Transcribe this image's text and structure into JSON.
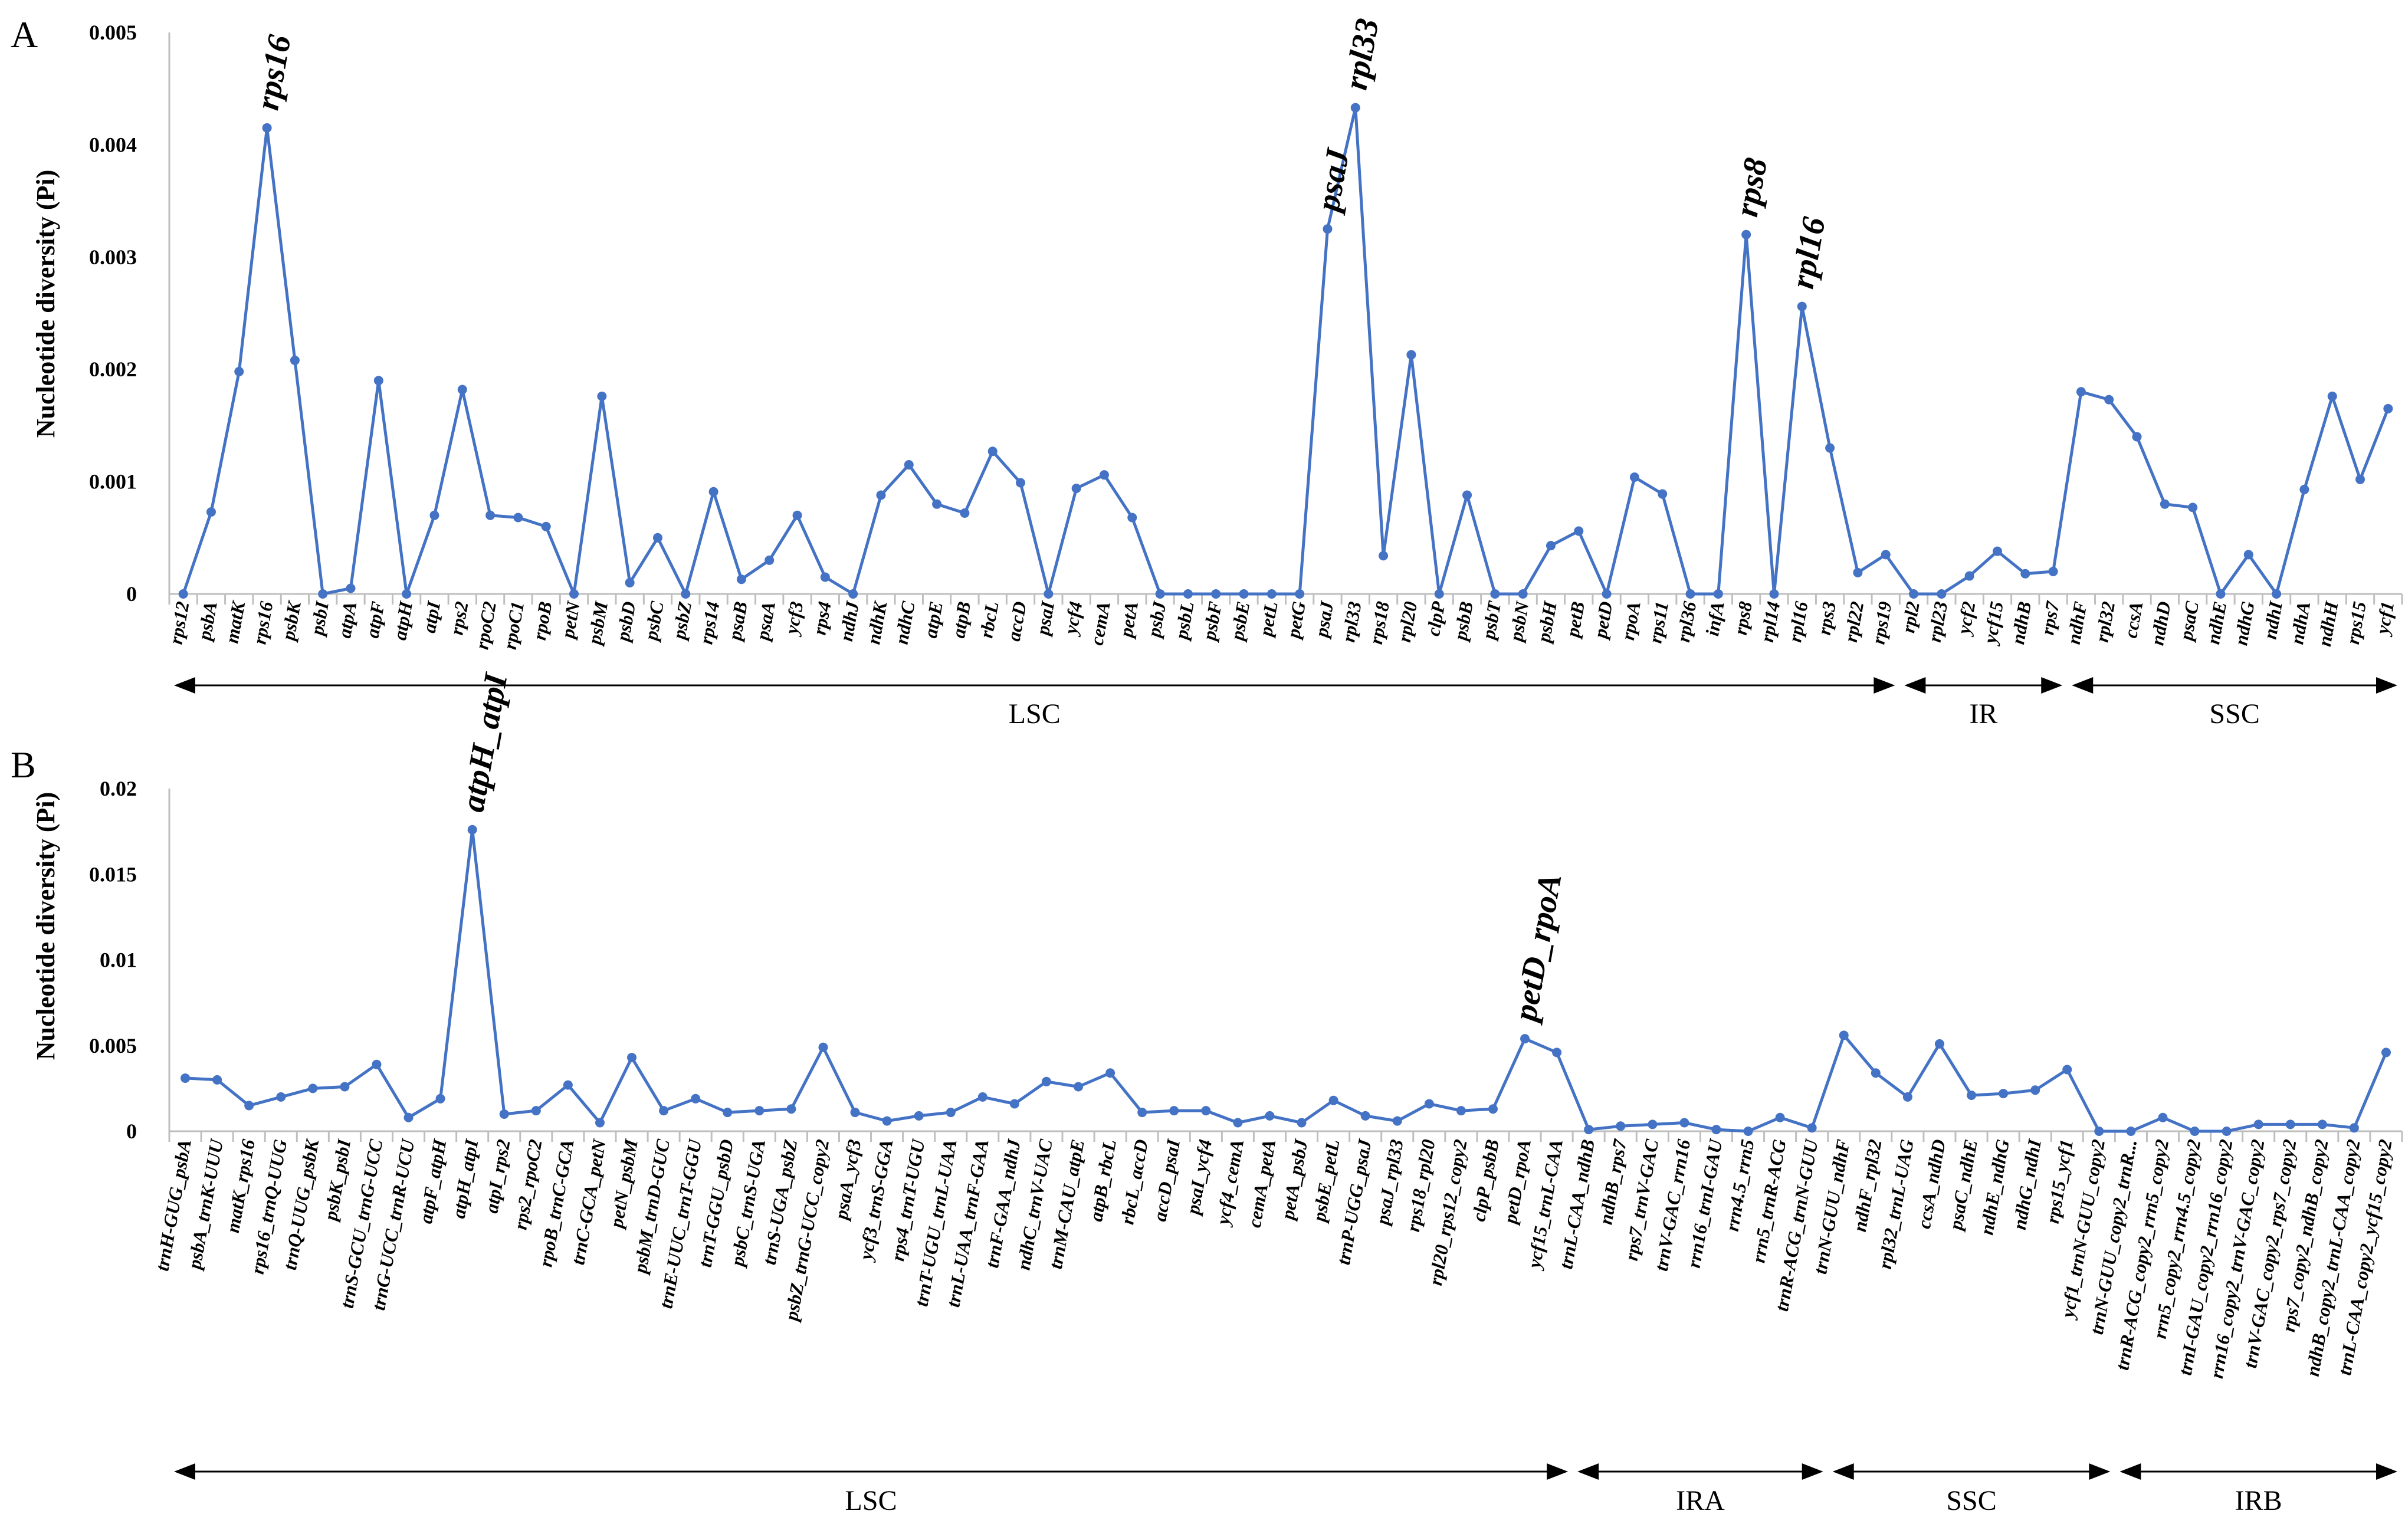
{
  "colors": {
    "series": "#4472C4",
    "axis": "#bfbfbf",
    "text": "#000000"
  },
  "chart_data": [
    {
      "type": "line",
      "panel": "A",
      "ylabel": "Nucleotide diversity (Pi)",
      "ylim": [
        0,
        0.005
      ],
      "yticks": [
        "0",
        "0.001",
        "0.002",
        "0.003",
        "0.004",
        "0.005"
      ],
      "categories": [
        "rps12",
        "psbA",
        "matK",
        "rps16",
        "psbK",
        "psbI",
        "atpA",
        "atpF",
        "atpH",
        "atpI",
        "rps2",
        "rpoC2",
        "rpoC1",
        "rpoB",
        "petN",
        "psbM",
        "psbD",
        "psbC",
        "psbZ",
        "rps14",
        "psaB",
        "psaA",
        "ycf3",
        "rps4",
        "ndhJ",
        "ndhK",
        "ndhC",
        "atpE",
        "atpB",
        "rbcL",
        "accD",
        "psaI",
        "ycf4",
        "cemA",
        "petA",
        "psbJ",
        "psbL",
        "psbF",
        "psbE",
        "petL",
        "petG",
        "psaJ",
        "rpl33",
        "rps18",
        "rpl20",
        "clpP",
        "psbB",
        "psbT",
        "psbN",
        "psbH",
        "petB",
        "petD",
        "rpoA",
        "rps11",
        "rpl36",
        "infA",
        "rps8",
        "rpl14",
        "rpl16",
        "rps3",
        "rpl22",
        "rps19",
        "rpl2",
        "rpl23",
        "ycf2",
        "ycf15",
        "ndhB",
        "rps7",
        "ndhF",
        "rpl32",
        "ccsA",
        "ndhD",
        "psaC",
        "ndhE",
        "ndhG",
        "ndhI",
        "ndhA",
        "ndhH",
        "rps15",
        "ycf1"
      ],
      "values": [
        0,
        0.00073,
        0.00198,
        0.00415,
        0.00208,
        0,
        5e-05,
        0.0019,
        0,
        0.0007,
        0.00182,
        0.0007,
        0.00068,
        0.0006,
        0,
        0.00176,
        0.0001,
        0.0005,
        0,
        0.00091,
        0.00013,
        0.0003,
        0.0007,
        0.00015,
        0,
        0.00088,
        0.00115,
        0.0008,
        0.00072,
        0.00127,
        0.00099,
        0,
        0.00094,
        0.00106,
        0.00068,
        0,
        0,
        0,
        0,
        0,
        0,
        0.00325,
        0.00433,
        0.00034,
        0.00213,
        0,
        0.00088,
        0,
        0,
        0.00043,
        0.00056,
        0,
        0.00104,
        0.00089,
        0,
        0,
        0.0032,
        0,
        0.00256,
        0.0013,
        0.00019,
        0.00035,
        0,
        0,
        0.00016,
        0.00038,
        0.00018,
        0.0002,
        0.0018,
        0.00173,
        0.0014,
        0.0008,
        0.00077,
        0,
        0.00035,
        0,
        0.00093,
        0.00176,
        0.00102,
        0.00165
      ],
      "annotations": [
        {
          "label": "rps16",
          "index": 3
        },
        {
          "label": "psaJ",
          "index": 41
        },
        {
          "label": "rpl33",
          "index": 42
        },
        {
          "label": "rps8",
          "index": 56
        },
        {
          "label": "rpl16",
          "index": 58
        }
      ],
      "regions": [
        {
          "label": "LSC",
          "start": 0,
          "end": 61
        },
        {
          "label": "IR",
          "start": 62,
          "end": 67
        },
        {
          "label": "SSC",
          "start": 68,
          "end": 79
        }
      ]
    },
    {
      "type": "line",
      "panel": "B",
      "ylabel": "Nucleotide diversity (Pi)",
      "ylim": [
        0,
        0.02
      ],
      "yticks": [
        "0",
        "0.005",
        "0.01",
        "0.015",
        "0.02"
      ],
      "categories": [
        "trnH-GUG_psbA",
        "psbA_trnK-UUU",
        "matK_rps16",
        "rps16_trnQ-UUG",
        "trnQ-UUG_psbK",
        "psbK_psbI",
        "trnS-GCU_trnG-UCC",
        "trnG-UCC_trnR-UCU",
        "atpF_atpH",
        "atpH_atpI",
        "atpI_rps2",
        "rps2_rpoC2",
        "rpoB_trnC-GCA",
        "trnC-GCA_petN",
        "petN_psbM",
        "psbM_trnD-GUC",
        "trnE-UUC_trnT-GGU",
        "trnT-GGU_psbD",
        "psbC_trnS-UGA",
        "trnS-UGA_psbZ",
        "psbZ_trnG-UCC_copy2",
        "psaA_ycf3",
        "ycf3_trnS-GGA",
        "rps4_trnT-UGU",
        "trnT-UGU_trnL-UAA",
        "trnL-UAA_trnF-GAA",
        "trnF-GAA_ndhJ",
        "ndhC_trnV-UAC",
        "trnM-CAU_atpE",
        "atpB_rbcL",
        "rbcL_accD",
        "accD_psaI",
        "psaI_ycf4",
        "ycf4_cemA",
        "cemA_petA",
        "petA_psbJ",
        "psbE_petL",
        "trnP-UGG_psaJ",
        "psaJ_rpl33",
        "rps18_rpl20",
        "rpl20_rps12_copy2",
        "clpP_psbB",
        "petD_rpoA",
        "ycf15_trnL-CAA",
        "trnL-CAA_ndhB",
        "ndhB_rps7",
        "rps7_trnV-GAC",
        "trnV-GAC_rrn16",
        "rrn16_trnI-GAU",
        "rrn4.5_rrn5",
        "rrn5_trnR-ACG",
        "trnR-ACG_trnN-GUU",
        "trnN-GUU_ndhF",
        "ndhF_rpl32",
        "rpl32_trnL-UAG",
        "ccsA_ndhD",
        "psaC_ndhE",
        "ndhE_ndhG",
        "ndhG_ndhI",
        "rps15_ycf1",
        "ycf1_trnN-GUU_copy2",
        "trnN-GUU_copy2_trnR...",
        "trnR-ACG_copy2_rrn5_copy2",
        "rrn5_copy2_rrn4.5_copy2",
        "trnI-GAU_copy2_rrn16_copy2",
        "rrn16_copy2_trnV-GAC_copy2",
        "trnV-GAC_copy2_rps7_copy2",
        "rps7_copy2_ndhB_copy2",
        "ndhB_copy2_trnL-CAA_copy2",
        "trnL-CAA_copy2_ycf15_copy2"
      ],
      "values": [
        0.0031,
        0.003,
        0.0015,
        0.002,
        0.0025,
        0.0026,
        0.0039,
        0.0008,
        0.0019,
        0.0176,
        0.001,
        0.0012,
        0.0027,
        0.0005,
        0.0043,
        0.0012,
        0.0019,
        0.0011,
        0.0012,
        0.0013,
        0.0049,
        0.0011,
        0.0006,
        0.0009,
        0.0011,
        0.002,
        0.0016,
        0.0029,
        0.0026,
        0.0034,
        0.0011,
        0.0012,
        0.0012,
        0.0005,
        0.0009,
        0.0005,
        0.0018,
        0.0009,
        0.0006,
        0.0016,
        0.0012,
        0.0013,
        0.0054,
        0.0046,
        0.0001,
        0.0003,
        0.0004,
        0.0005,
        0.0001,
        0,
        0.0008,
        0.0002,
        0.0056,
        0.0034,
        0.002,
        0.0051,
        0.0021,
        0.0022,
        0.0024,
        0.0036,
        0,
        0,
        0.0008,
        0,
        0,
        0.0004,
        0.0004,
        0.0004,
        0.0002,
        0.0046
      ],
      "annotations": [
        {
          "label": "atpH_atpI",
          "index": 9
        },
        {
          "label": "petD_rpoA",
          "index": 42
        }
      ],
      "regions": [
        {
          "label": "LSC",
          "start": 0,
          "end": 43
        },
        {
          "label": "IRA",
          "start": 44,
          "end": 51
        },
        {
          "label": "SSC",
          "start": 52,
          "end": 60
        },
        {
          "label": "IRB",
          "start": 61,
          "end": 69
        }
      ]
    }
  ]
}
